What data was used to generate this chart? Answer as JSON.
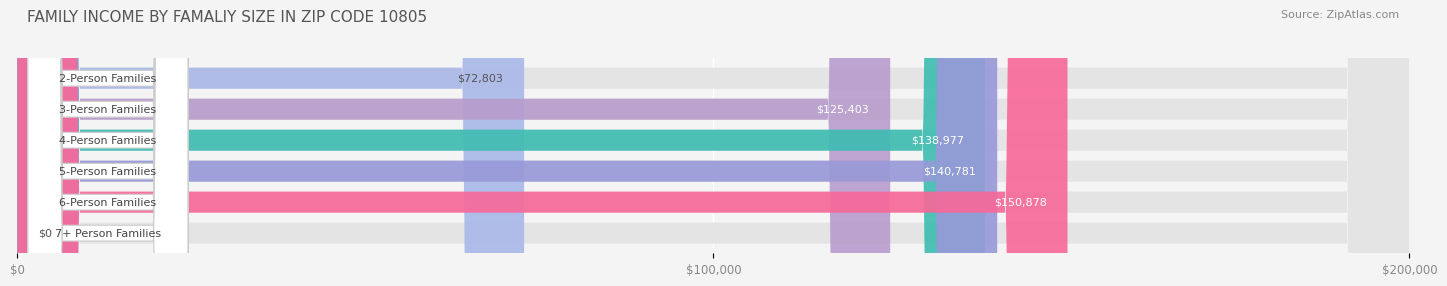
{
  "title": "FAMILY INCOME BY FAMALIY SIZE IN ZIP CODE 10805",
  "source": "Source: ZipAtlas.com",
  "categories": [
    "2-Person Families",
    "3-Person Families",
    "4-Person Families",
    "5-Person Families",
    "6-Person Families",
    "7+ Person Families"
  ],
  "values": [
    72803,
    125403,
    138977,
    140781,
    150878,
    0
  ],
  "bar_colors": [
    "#a8b8e8",
    "#b89ccc",
    "#3dbcb0",
    "#9898d8",
    "#f86898",
    "#f8d8a8"
  ],
  "value_text_colors": [
    "#555555",
    "#ffffff",
    "#ffffff",
    "#ffffff",
    "#ffffff",
    "#555555"
  ],
  "max_value": 200000,
  "xlim": [
    0,
    200000
  ],
  "xtick_values": [
    0,
    100000,
    200000
  ],
  "xtick_labels": [
    "$0",
    "$100,000",
    "$200,000"
  ],
  "background_color": "#f4f4f4",
  "bar_bg_color": "#e4e4e4",
  "title_fontsize": 11,
  "source_fontsize": 8,
  "label_fontsize": 8,
  "value_fontsize": 8
}
